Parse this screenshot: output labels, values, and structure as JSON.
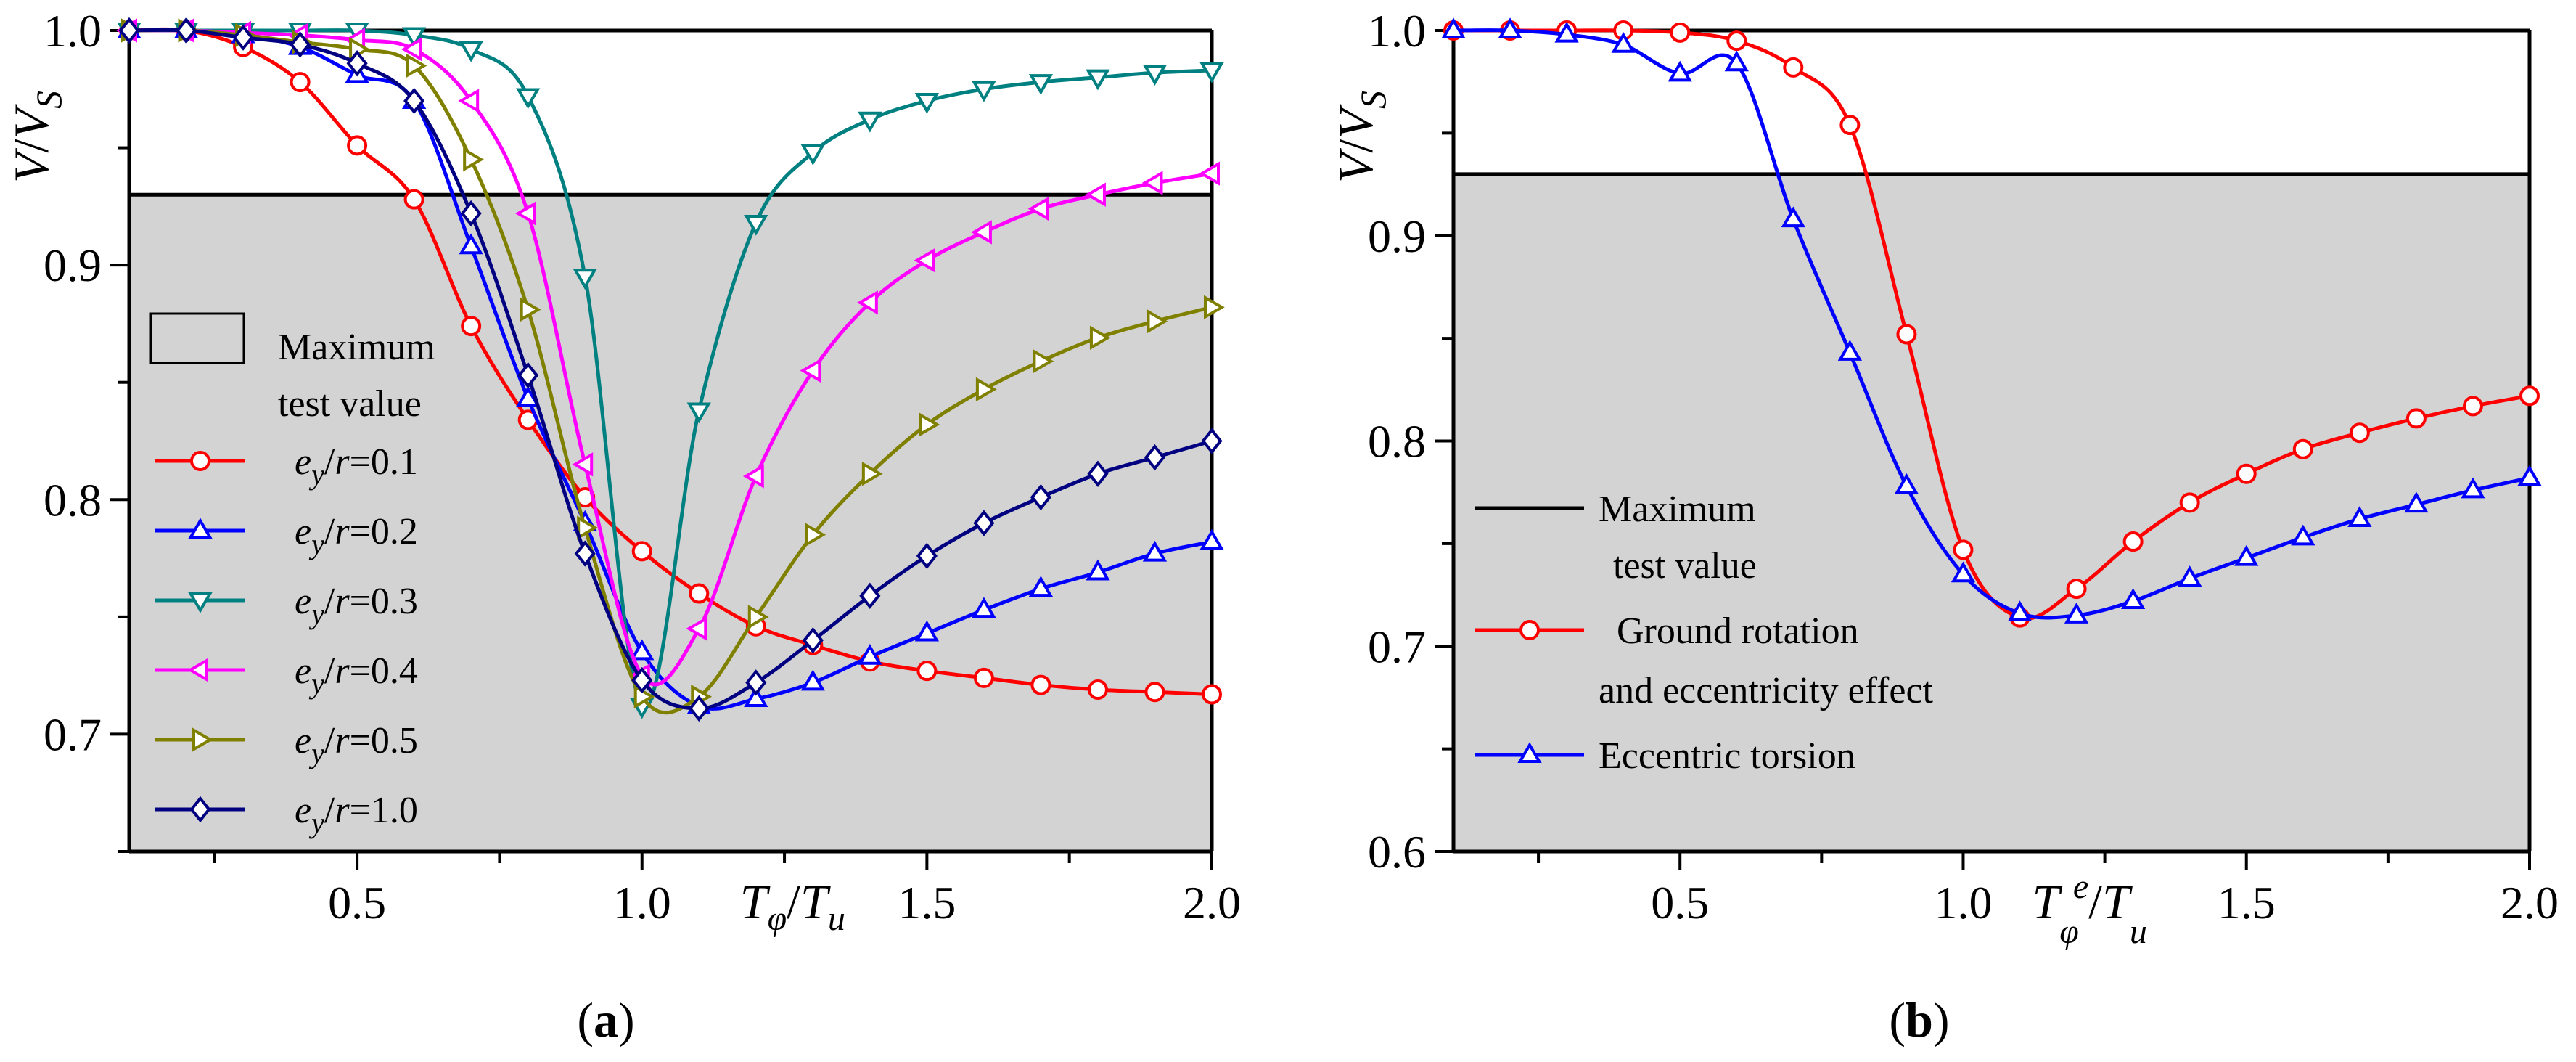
{
  "chart_data": [
    {
      "type": "line",
      "panel_label": "(a)",
      "panel_letter": "a",
      "ylabel": "V/V_S",
      "ylabel_parts": [
        "V",
        "/",
        "V",
        "S"
      ],
      "xlabel": "T_φ/T_u",
      "xlabel_parts": [
        "T",
        "φ",
        "/",
        "T",
        "u"
      ],
      "xlim": [
        0.1,
        2.0
      ],
      "ylim": [
        0.65,
        1.0
      ],
      "x_ticks": [
        0.5,
        1.0,
        1.5,
        2.0
      ],
      "x_tick_labels": [
        "0.5",
        "1.0",
        "1.5",
        "2.0"
      ],
      "y_ticks": [
        0.7,
        0.8,
        0.9,
        1.0
      ],
      "y_tick_labels": [
        "0.7",
        "0.8",
        "0.9",
        "1.0"
      ],
      "shaded_region": {
        "y_max": 0.93,
        "color": "#d3d3d3"
      },
      "legend": {
        "placement": "center-left",
        "shaded_entry": [
          "Maximum",
          "test value"
        ],
        "series_entries": [
          [
            "e",
            "y",
            "/",
            "r",
            "=0.1"
          ],
          [
            "e",
            "y",
            "/",
            "r",
            "=0.2"
          ],
          [
            "e",
            "y",
            "/",
            "r",
            "=0.3"
          ],
          [
            "e",
            "y",
            "/",
            "r",
            "=0.4"
          ],
          [
            "e",
            "y",
            "/",
            "r",
            "=0.5"
          ],
          [
            "e",
            "y",
            "/",
            "r",
            "=1.0"
          ]
        ]
      },
      "x": [
        0.1,
        0.2,
        0.3,
        0.4,
        0.5,
        0.6,
        0.7,
        0.8,
        0.9,
        1.0,
        1.1,
        1.2,
        1.3,
        1.4,
        1.5,
        1.6,
        1.7,
        1.8,
        1.9,
        2.0
      ],
      "series": [
        {
          "name": "e_y/r=0.1",
          "color": "#ff0000",
          "marker": "circle",
          "values": [
            1.0,
            1.0,
            0.993,
            0.978,
            0.951,
            0.928,
            0.874,
            0.834,
            0.801,
            0.778,
            0.76,
            0.746,
            0.738,
            0.731,
            0.727,
            0.724,
            0.721,
            0.719,
            0.718,
            0.717
          ]
        },
        {
          "name": "e_y/r=0.2",
          "color": "#0000ff",
          "marker": "triangle-up",
          "values": [
            1.0,
            1.0,
            0.998,
            0.993,
            0.981,
            0.97,
            0.908,
            0.843,
            0.79,
            0.735,
            0.712,
            0.715,
            0.722,
            0.733,
            0.743,
            0.753,
            0.762,
            0.769,
            0.777,
            0.782
          ]
        },
        {
          "name": "e_y/r=0.3",
          "color": "#008080",
          "marker": "triangle-down",
          "values": [
            1.0,
            1.0,
            1.0,
            1.0,
            1.0,
            0.998,
            0.992,
            0.972,
            0.895,
            0.712,
            0.838,
            0.918,
            0.948,
            0.962,
            0.97,
            0.975,
            0.978,
            0.98,
            0.982,
            0.983
          ]
        },
        {
          "name": "e_y/r=0.4",
          "color": "#ff00ff",
          "marker": "triangle-left",
          "values": [
            1.0,
            1.0,
            0.999,
            0.998,
            0.996,
            0.992,
            0.97,
            0.922,
            0.815,
            0.725,
            0.745,
            0.81,
            0.855,
            0.884,
            0.902,
            0.914,
            0.924,
            0.93,
            0.935,
            0.939
          ]
        },
        {
          "name": "e_y/r=0.5",
          "color": "#808000",
          "marker": "triangle-right",
          "values": [
            1.0,
            1.0,
            0.998,
            0.995,
            0.992,
            0.985,
            0.945,
            0.881,
            0.788,
            0.716,
            0.716,
            0.75,
            0.785,
            0.811,
            0.832,
            0.847,
            0.859,
            0.869,
            0.876,
            0.882
          ]
        },
        {
          "name": "e_y/r=1.0",
          "color": "#000080",
          "marker": "diamond",
          "values": [
            1.0,
            1.0,
            0.997,
            0.994,
            0.986,
            0.97,
            0.922,
            0.853,
            0.777,
            0.723,
            0.711,
            0.722,
            0.74,
            0.759,
            0.776,
            0.79,
            0.801,
            0.811,
            0.818,
            0.825
          ]
        }
      ]
    },
    {
      "type": "line",
      "panel_label": "(b)",
      "panel_letter": "b",
      "ylabel": "V/V_S",
      "ylabel_parts": [
        "V",
        "/",
        "V",
        "S"
      ],
      "xlabel": "T_φ^e/T_u",
      "xlabel_parts": [
        "T",
        "φ",
        "e",
        "/",
        "T",
        "u"
      ],
      "xlim": [
        0.1,
        2.0
      ],
      "ylim": [
        0.6,
        1.0
      ],
      "x_ticks": [
        0.5,
        1.0,
        1.5,
        2.0
      ],
      "x_tick_labels": [
        "0.5",
        "1.0",
        "1.5",
        "2.0"
      ],
      "y_ticks": [
        0.6,
        0.7,
        0.8,
        0.9,
        1.0
      ],
      "y_tick_labels": [
        "0.6",
        "0.7",
        "0.8",
        "0.9",
        "1.0"
      ],
      "shaded_region": {
        "y_max": 0.93,
        "color": "#d3d3d3"
      },
      "legend": {
        "placement": "center-left",
        "line_entry": [
          "Maximum",
          "test value"
        ],
        "series_entries": [
          [
            "Ground rotation",
            "and eccentricity effect"
          ],
          [
            "Eccentric torsion"
          ]
        ]
      },
      "x": [
        0.1,
        0.2,
        0.3,
        0.4,
        0.5,
        0.6,
        0.7,
        0.8,
        0.9,
        1.0,
        1.1,
        1.2,
        1.3,
        1.4,
        1.5,
        1.6,
        1.7,
        1.8,
        1.9,
        2.0
      ],
      "series": [
        {
          "name": "Ground rotation and eccentricity effect",
          "color": "#ff0000",
          "marker": "circle",
          "values": [
            1.0,
            1.0,
            1.0,
            1.0,
            0.999,
            0.995,
            0.982,
            0.954,
            0.852,
            0.747,
            0.714,
            0.728,
            0.751,
            0.77,
            0.784,
            0.796,
            0.804,
            0.811,
            0.817,
            0.822
          ]
        },
        {
          "name": "Eccentric torsion",
          "color": "#0000ff",
          "marker": "triangle-up",
          "values": [
            1.0,
            1.0,
            0.998,
            0.993,
            0.979,
            0.984,
            0.908,
            0.843,
            0.778,
            0.735,
            0.716,
            0.715,
            0.722,
            0.733,
            0.743,
            0.753,
            0.762,
            0.769,
            0.776,
            0.782
          ]
        }
      ]
    }
  ]
}
